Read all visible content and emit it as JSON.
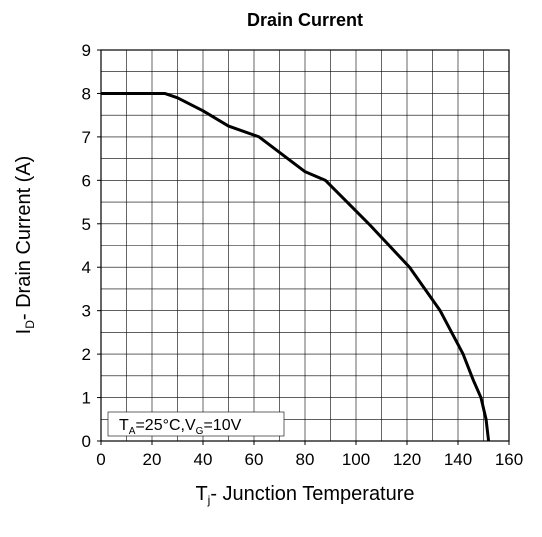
{
  "chart_data": {
    "type": "line",
    "title": "Drain Current",
    "y_label_parts": [
      "I",
      "D",
      "- Drain Current (A)"
    ],
    "x_label_parts": [
      "T",
      "j",
      "- Junction Temperature"
    ],
    "annotation_parts": [
      "T",
      "A",
      "=25°C,V",
      "G",
      "=10V"
    ],
    "x": [
      0,
      25,
      30,
      40,
      50,
      62,
      80,
      88,
      105,
      121,
      133,
      142,
      146,
      149,
      151,
      152
    ],
    "series": [
      {
        "color": "#000000",
        "values": [
          8,
          8,
          7.9,
          7.6,
          7.25,
          7,
          6.2,
          6,
          5,
          4,
          3,
          2,
          1.4,
          1,
          0.5,
          0
        ]
      }
    ],
    "xlim": [
      0,
      160
    ],
    "ylim": [
      0,
      9
    ],
    "xticks": [
      0,
      20,
      40,
      60,
      80,
      100,
      120,
      140,
      160
    ],
    "yticks": [
      0,
      1,
      2,
      3,
      4,
      5,
      6,
      7,
      8,
      9
    ],
    "xgrid": [
      0,
      10,
      20,
      30,
      40,
      50,
      60,
      70,
      80,
      90,
      100,
      110,
      120,
      130,
      140,
      150,
      160
    ],
    "ygrid": [
      0,
      0.5,
      1,
      1.5,
      2,
      2.5,
      3,
      3.5,
      4,
      4.5,
      5,
      5.5,
      6,
      6.5,
      7,
      7.5,
      8,
      8.5,
      9
    ],
    "grid": true
  }
}
